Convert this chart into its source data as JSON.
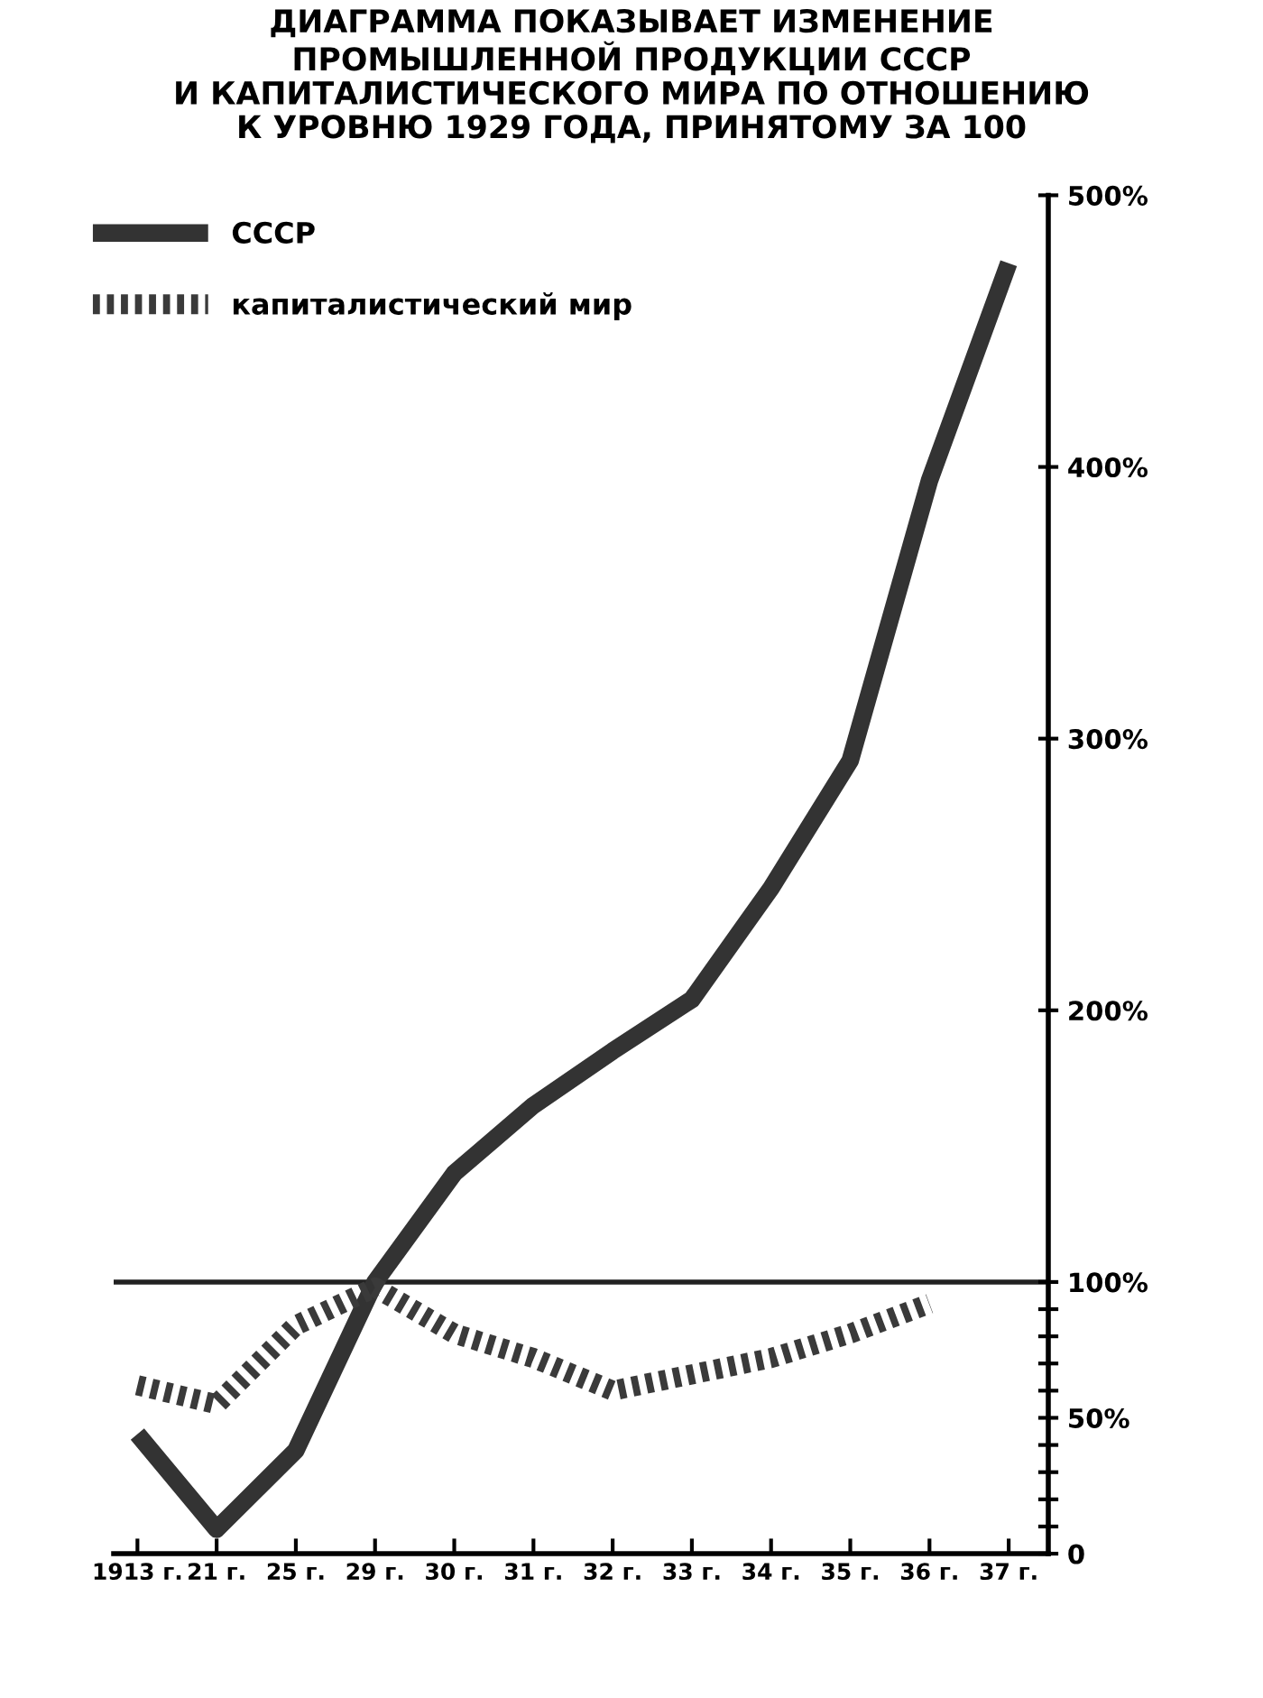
{
  "chart_data": {
    "type": "line",
    "title": "ДИАГРАММА ПОКАЗЫВАЕТ ИЗМЕНЕНИЕ\nПРОМЫШЛЕННОЙ ПРОДУКЦИИ СССР\nИ КАПИТАЛИСТИЧЕСКОГО МИРА ПО ОТНОШЕНИЮ\nК УРОВНЮ 1929 ГОДА, ПРИНЯТОМУ ЗА 100",
    "categories": [
      "1913 г.",
      "21 г.",
      "25 г.",
      "29 г.",
      "30 г.",
      "31 г.",
      "32 г.",
      "33 г.",
      "34 г.",
      "35 г.",
      "36 г.",
      "37 г."
    ],
    "series": [
      {
        "name": "СССР",
        "color": "#333333",
        "line_style": "solid",
        "values": [
          44,
          9,
          38,
          100,
          140,
          165,
          185,
          204,
          245,
          292,
          395,
          475
        ]
      },
      {
        "name": "капиталистический мир",
        "color": "#3a3a3a",
        "line_style": "dotted",
        "values": [
          62,
          55,
          84,
          98,
          81,
          72,
          60,
          66,
          72,
          81,
          92,
          null
        ]
      }
    ],
    "ylim": [
      0,
      500
    ],
    "yticks": [
      {
        "value": 0,
        "label": "0"
      },
      {
        "value": 10,
        "label": null
      },
      {
        "value": 20,
        "label": null
      },
      {
        "value": 30,
        "label": null
      },
      {
        "value": 40,
        "label": null
      },
      {
        "value": 50,
        "label": "50%"
      },
      {
        "value": 60,
        "label": null
      },
      {
        "value": 70,
        "label": null
      },
      {
        "value": 80,
        "label": null
      },
      {
        "value": 90,
        "label": null
      },
      {
        "value": 100,
        "label": "100%"
      },
      {
        "value": 200,
        "label": "200%"
      },
      {
        "value": 300,
        "label": "300%"
      },
      {
        "value": 400,
        "label": "400%"
      },
      {
        "value": 500,
        "label": "500%"
      }
    ],
    "ref_lines": [
      {
        "axis": "y",
        "value": 100,
        "color": "#222222"
      }
    ],
    "grid": false,
    "legend": "top left",
    "marker": "none"
  }
}
